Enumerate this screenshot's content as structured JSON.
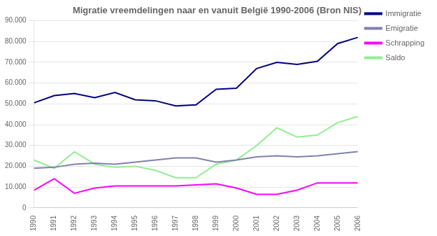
{
  "chart_data": {
    "type": "line",
    "title": "Migratie vreemdelingen naar en vanuit België 1990-2006 (Bron NIS)",
    "x": [
      1990,
      1991,
      1992,
      1993,
      1994,
      1995,
      1996,
      1997,
      1998,
      1999,
      2000,
      2001,
      2002,
      2003,
      2004,
      2005,
      2006
    ],
    "series": [
      {
        "name": "Immigratie",
        "color": "#000080",
        "values": [
          50500,
          54000,
          55000,
          53000,
          55500,
          52000,
          51500,
          49000,
          49500,
          57000,
          57500,
          67000,
          70000,
          69000,
          70500,
          79000,
          82000
        ]
      },
      {
        "name": "Emigratie",
        "color": "#8080b0",
        "values": [
          19000,
          19500,
          21000,
          21500,
          21000,
          22000,
          23000,
          24000,
          24000,
          22000,
          23000,
          24500,
          25000,
          24500,
          25000,
          26000,
          27000
        ]
      },
      {
        "name": "Schrapping",
        "color": "#ff00ff",
        "values": [
          8500,
          14000,
          7000,
          9500,
          10500,
          10500,
          10500,
          10500,
          11000,
          11500,
          9500,
          6500,
          6500,
          8500,
          12000,
          12000,
          12000
        ]
      },
      {
        "name": "Saldo",
        "color": "#90ee90",
        "values": [
          23000,
          19000,
          27000,
          21000,
          19500,
          20000,
          18000,
          14500,
          14500,
          21000,
          23000,
          30000,
          38500,
          34000,
          35000,
          41000,
          44000
        ]
      }
    ],
    "xlim": [
      1990,
      2006
    ],
    "xticks": [
      1990,
      1991,
      1992,
      1993,
      1994,
      1995,
      1996,
      1997,
      1998,
      1999,
      2000,
      2001,
      2002,
      2003,
      2004,
      2005,
      2006
    ],
    "ylim": [
      0,
      90000
    ],
    "yticks": [
      0,
      {
        "value": 10000,
        "label": "10.000"
      },
      {
        "value": 20000,
        "label": "20.000"
      },
      {
        "value": 30000,
        "label": "30.000"
      },
      {
        "value": 40000,
        "label": "40.000"
      },
      {
        "value": 50000,
        "label": "50.000"
      },
      {
        "value": 60000,
        "label": "60.000"
      },
      {
        "value": 70000,
        "label": "70.000"
      },
      {
        "value": 80000,
        "label": "80.000"
      },
      {
        "value": 90000,
        "label": "90.000"
      }
    ],
    "grid": "y",
    "legend": "upper right"
  }
}
